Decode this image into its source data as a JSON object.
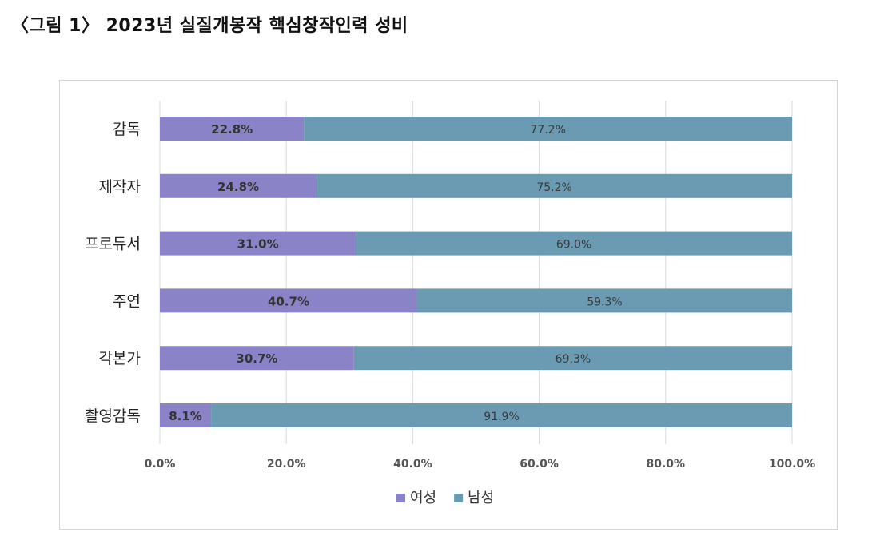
{
  "figure_title": "〈그림 1〉  2023년 실질개봉작 핵심창작인력 성비",
  "colors": {
    "female": "#8b83c7",
    "male": "#6a9bb2",
    "grid": "#d9d9d9"
  },
  "chart_data": {
    "type": "bar",
    "orientation": "horizontal",
    "stacked": "percent",
    "title": "",
    "categories": [
      "감독",
      "제작자",
      "프로듀서",
      "주연",
      "각본가",
      "촬영감독"
    ],
    "series": [
      {
        "name": "여성",
        "values": [
          22.8,
          24.8,
          31.0,
          40.7,
          30.7,
          8.1
        ],
        "labels": [
          "22.8%",
          "24.8%",
          "31.0%",
          "40.7%",
          "30.7%",
          "8.1%"
        ]
      },
      {
        "name": "남성",
        "values": [
          77.2,
          75.2,
          69.0,
          59.3,
          69.3,
          91.9
        ],
        "labels": [
          "77.2%",
          "75.2%",
          "69.0%",
          "59.3%",
          "69.3%",
          "91.9%"
        ]
      }
    ],
    "xlim": [
      0,
      100
    ],
    "xticks": [
      0,
      20,
      40,
      60,
      80,
      100
    ],
    "xtick_labels": [
      "0.0%",
      "20.0%",
      "40.0%",
      "60.0%",
      "80.0%",
      "100.0%"
    ],
    "grid": true,
    "legend": "bottom"
  }
}
